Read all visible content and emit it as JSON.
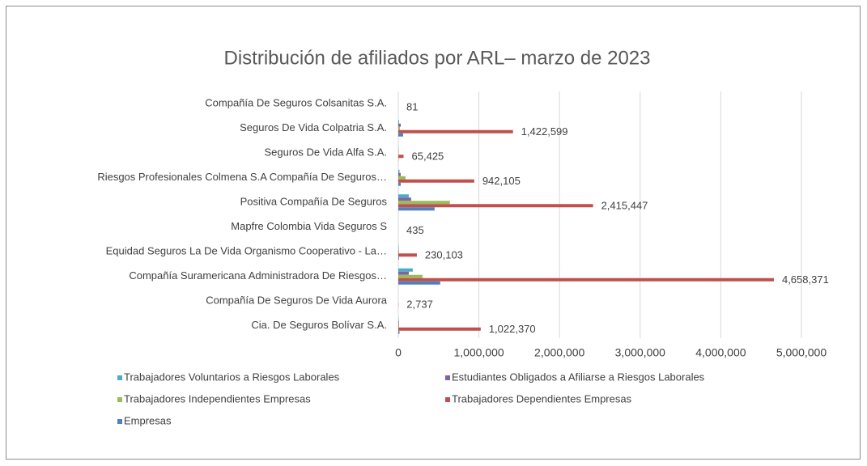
{
  "chart_data": {
    "type": "barh",
    "title": "Distribución de afiliados por ARL– marzo de 2023",
    "categories": [
      "Compañía De Seguros Colsanitas S.A.",
      "Seguros De Vida Colpatria S.A.",
      "Seguros De Vida Alfa S.A.",
      "Riesgos Profesionales Colmena S.A Compañía De Seguros…",
      "Positiva Compañía De Seguros",
      "Mapfre Colombia Vida Seguros S",
      "Equidad Seguros La De Vida Organismo Cooperativo - La…",
      "Compañía Suramericana Administradora De Riesgos…",
      "Compañía De Seguros De Vida Aurora",
      "Cia. De Seguros Bolívar S.A."
    ],
    "series": [
      {
        "name": "Trabajadores Voluntarios a Riesgos Laborales",
        "color": "#4bacc6",
        "values": [
          0,
          10000,
          2000,
          15000,
          130000,
          0,
          3000,
          180000,
          0,
          5000
        ]
      },
      {
        "name": "Estudiantes Obligados a Afiliarse a Riesgos Laborales",
        "color": "#8064a2",
        "values": [
          0,
          30000,
          3000,
          30000,
          160000,
          0,
          5000,
          130000,
          0,
          8000
        ]
      },
      {
        "name": "Trabajadores Independientes Empresas",
        "color": "#9bbb59",
        "values": [
          0,
          20000,
          5000,
          90000,
          640000,
          0,
          10000,
          300000,
          0,
          10000
        ]
      },
      {
        "name": "Trabajadores Dependientes Empresas",
        "color": "#c0504d",
        "values": [
          81,
          1422599,
          65425,
          942105,
          2415447,
          435,
          230103,
          4658371,
          2737,
          1022370
        ],
        "value_labels": [
          "81",
          "1,422,599",
          "65,425",
          "942,105",
          "2,415,447",
          "435",
          "230,103",
          "4,658,371",
          "2,737",
          "1,022,370"
        ]
      },
      {
        "name": "Empresas",
        "color": "#4f81bd",
        "values": [
          0,
          60000,
          3000,
          30000,
          450000,
          0,
          8000,
          520000,
          0,
          15000
        ]
      }
    ],
    "xlim": [
      0,
      5000000
    ],
    "xticks": [
      0,
      {
        "value": 1000000,
        "label": "1,000,000"
      },
      {
        "value": 2000000,
        "label": "2,000,000"
      },
      {
        "value": 3000000,
        "label": "3,000,000"
      },
      {
        "value": 4000000,
        "label": "4,000,000"
      },
      {
        "value": 5000000,
        "label": "5,000,000"
      }
    ],
    "grid": true
  }
}
